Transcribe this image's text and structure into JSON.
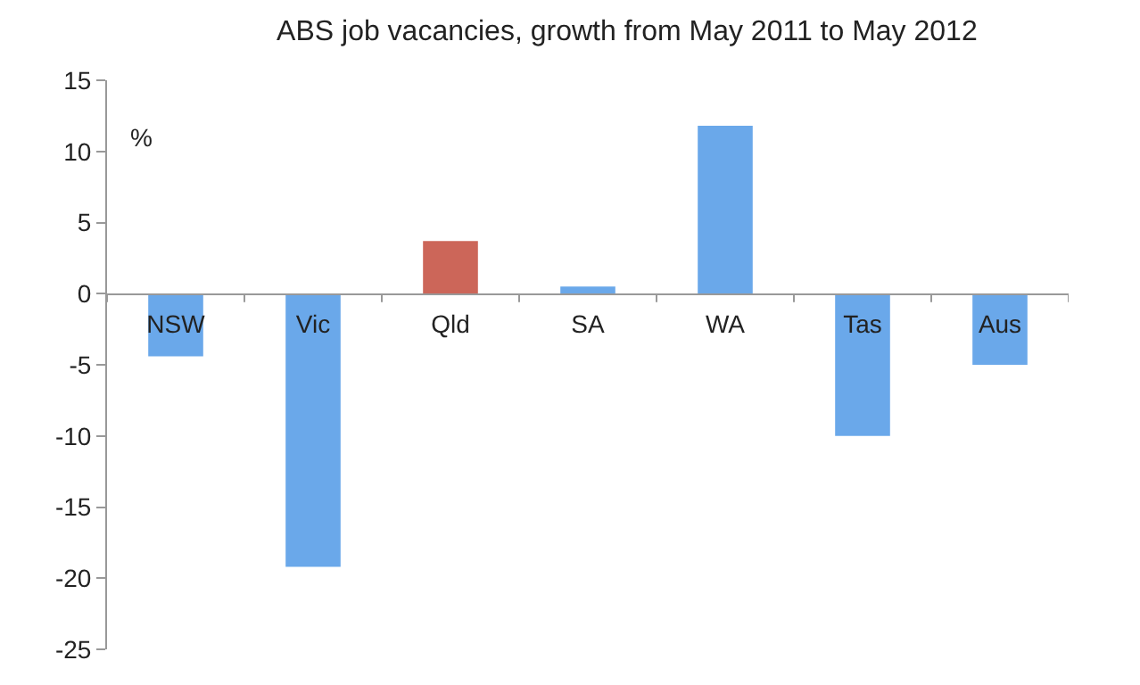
{
  "chart_data": {
    "type": "bar",
    "title": "ABS job vacancies, growth from May 2011 to May 2012",
    "ylabel": "%",
    "categories": [
      "NSW",
      "Vic",
      "Qld",
      "SA",
      "WA",
      "Tas",
      "Aus"
    ],
    "values": [
      -4.4,
      -19.2,
      3.7,
      0.5,
      11.8,
      -10.0,
      -5.0
    ],
    "colors": [
      "#6aa8ea",
      "#6aa8ea",
      "#cc6659",
      "#6aa8ea",
      "#6aa8ea",
      "#6aa8ea",
      "#6aa8ea"
    ],
    "ylim": [
      -25,
      15
    ],
    "yticks": [
      -25,
      -20,
      -15,
      -10,
      -5,
      0,
      5,
      10,
      15
    ]
  }
}
